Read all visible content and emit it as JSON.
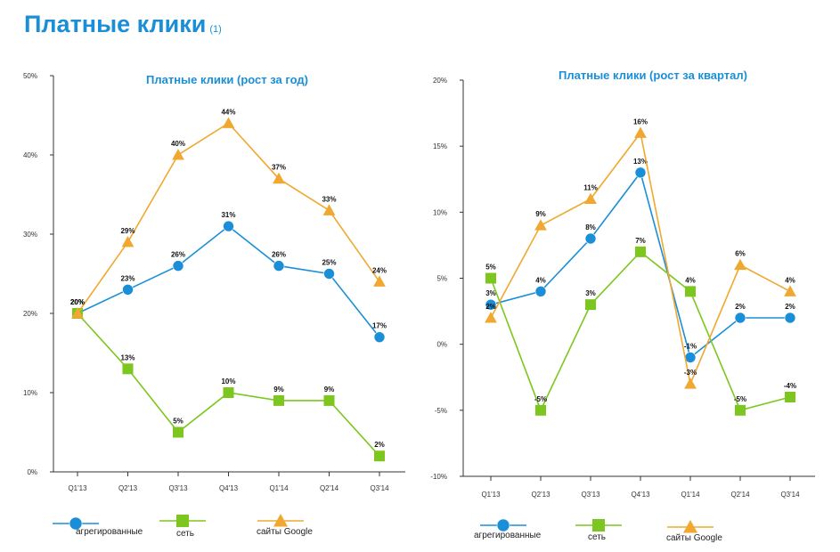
{
  "page": {
    "title": "Платные клики",
    "title_note": "(1)"
  },
  "colors": {
    "aggregated": "#1a8fd8",
    "network": "#7dc61f",
    "google": "#f0a830",
    "title": "#1a8fd8",
    "axis": "#333333"
  },
  "icons": {
    "aggregated": "circle-marker",
    "network": "square-marker",
    "google": "triangle-marker"
  },
  "chart_data": [
    {
      "type": "line",
      "title": "Платные клики (рост за год)",
      "xlabel": "",
      "ylabel": "",
      "categories": [
        "Q1'13",
        "Q2'13",
        "Q3'13",
        "Q4'13",
        "Q1'14",
        "Q2'14",
        "Q3'14"
      ],
      "ylim": [
        0,
        50
      ],
      "yticks": [
        0,
        10,
        20,
        30,
        40,
        50
      ],
      "ytick_labels": [
        "0%",
        "10%",
        "20%",
        "30%",
        "40%",
        "50%"
      ],
      "grid": false,
      "legend_position": "bottom",
      "series": [
        {
          "name": "агрегированные",
          "key": "aggregated",
          "marker": "circle",
          "values": [
            20,
            23,
            26,
            31,
            26,
            25,
            17
          ],
          "labels": [
            "20%",
            "23%",
            "26%",
            "31%",
            "26%",
            "25%",
            "17%"
          ]
        },
        {
          "name": "сеть",
          "key": "network",
          "marker": "square",
          "values": [
            20,
            13,
            5,
            10,
            9,
            9,
            2
          ],
          "labels": [
            "20%",
            "13%",
            "5%",
            "10%",
            "9%",
            "9%",
            "2%"
          ]
        },
        {
          "name": "сайты Google",
          "key": "google",
          "marker": "triangle",
          "values": [
            20,
            29,
            40,
            44,
            37,
            33,
            24
          ],
          "labels": [
            "20%",
            "29%",
            "40%",
            "44%",
            "37%",
            "33%",
            "24%"
          ]
        }
      ]
    },
    {
      "type": "line",
      "title": "Платные клики (рост за квартал)",
      "xlabel": "",
      "ylabel": "",
      "categories": [
        "Q1'13",
        "Q2'13",
        "Q3'13",
        "Q4'13",
        "Q1'14",
        "Q2'14",
        "Q3'14"
      ],
      "ylim": [
        -10,
        20
      ],
      "yticks": [
        -10,
        -5,
        0,
        5,
        10,
        15,
        20
      ],
      "ytick_labels": [
        "-10%",
        "-5%",
        "0%",
        "5%",
        "10%",
        "15%",
        "20%"
      ],
      "grid": false,
      "legend_position": "bottom",
      "series": [
        {
          "name": "агрегированные",
          "key": "aggregated",
          "marker": "circle",
          "values": [
            3,
            4,
            8,
            13,
            -1,
            2,
            2
          ],
          "labels": [
            "3%",
            "4%",
            "8%",
            "13%",
            "-1%",
            "2%",
            "2%"
          ]
        },
        {
          "name": "сеть",
          "key": "network",
          "marker": "square",
          "values": [
            5,
            -5,
            3,
            7,
            4,
            -5,
            -4
          ],
          "labels": [
            "5%",
            "-5%",
            "3%",
            "7%",
            "4%",
            "-5%",
            "-4%"
          ]
        },
        {
          "name": "сайты Google",
          "key": "google",
          "marker": "triangle",
          "values": [
            2,
            9,
            11,
            16,
            -3,
            6,
            4
          ],
          "labels": [
            "2%",
            "9%",
            "11%",
            "16%",
            "-3%",
            "6%",
            "4%"
          ]
        }
      ]
    }
  ]
}
